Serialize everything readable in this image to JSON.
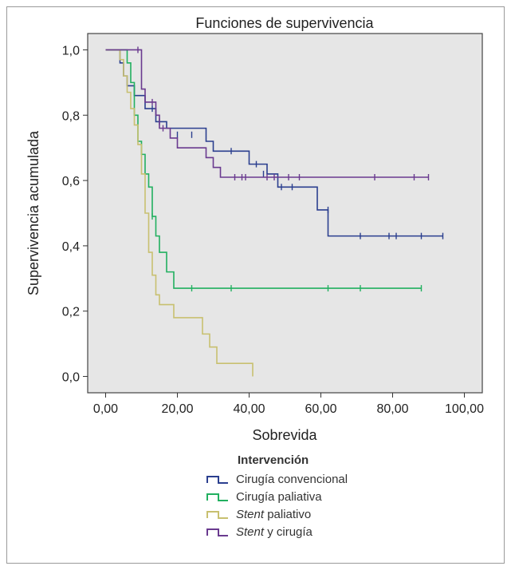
{
  "chart_data": {
    "type": "line",
    "title": "Funciones de supervivencia",
    "xlabel": "Sobrevida",
    "ylabel": "Supervivencia acumulada",
    "xlim": [
      -5,
      105
    ],
    "ylim": [
      -0.05,
      1.05
    ],
    "xticks": [
      "0,00",
      "20,00",
      "40,00",
      "60,00",
      "80,00",
      "100,00"
    ],
    "yticks": [
      "0,0",
      "0,2",
      "0,4",
      "0,6",
      "0,8",
      "1,0"
    ],
    "grid": false,
    "legend_title": "Intervención",
    "legend_position": "bottom",
    "series": [
      {
        "name": "Cirugía convencional",
        "color": "#2b3f8f",
        "steps": [
          [
            0,
            1.0
          ],
          [
            3,
            1.0
          ],
          [
            4,
            0.96
          ],
          [
            5,
            0.92
          ],
          [
            6,
            0.89
          ],
          [
            8,
            0.86
          ],
          [
            11,
            0.82
          ],
          [
            14,
            0.78
          ],
          [
            17,
            0.76
          ],
          [
            28,
            0.72
          ],
          [
            30,
            0.69
          ],
          [
            40,
            0.65
          ],
          [
            45,
            0.62
          ],
          [
            48,
            0.58
          ],
          [
            59,
            0.51
          ],
          [
            62,
            0.43
          ],
          [
            94,
            0.43
          ]
        ],
        "censored": [
          [
            13,
            0.82
          ],
          [
            15,
            0.78
          ],
          [
            20,
            0.74
          ],
          [
            24,
            0.74
          ],
          [
            35,
            0.69
          ],
          [
            42,
            0.65
          ],
          [
            44,
            0.62
          ],
          [
            49,
            0.58
          ],
          [
            52,
            0.58
          ],
          [
            62,
            0.51
          ],
          [
            71,
            0.43
          ],
          [
            79,
            0.43
          ],
          [
            81,
            0.43
          ],
          [
            88,
            0.43
          ],
          [
            94,
            0.43
          ]
        ]
      },
      {
        "name": "Cirugía paliativa",
        "color": "#22b060",
        "steps": [
          [
            0,
            1.0
          ],
          [
            5,
            1.0
          ],
          [
            6,
            0.96
          ],
          [
            7,
            0.9
          ],
          [
            8,
            0.8
          ],
          [
            9,
            0.72
          ],
          [
            10,
            0.68
          ],
          [
            11,
            0.62
          ],
          [
            12,
            0.58
          ],
          [
            13,
            0.49
          ],
          [
            14,
            0.43
          ],
          [
            15,
            0.38
          ],
          [
            17,
            0.32
          ],
          [
            19,
            0.27
          ],
          [
            88,
            0.27
          ]
        ],
        "censored": [
          [
            13,
            0.49
          ],
          [
            24,
            0.27
          ],
          [
            35,
            0.27
          ],
          [
            62,
            0.27
          ],
          [
            71,
            0.27
          ],
          [
            88,
            0.27
          ]
        ]
      },
      {
        "name": "Stent paliativo",
        "color": "#c8c070",
        "steps": [
          [
            0,
            1.0
          ],
          [
            4,
            0.97
          ],
          [
            5,
            0.92
          ],
          [
            6,
            0.87
          ],
          [
            7,
            0.82
          ],
          [
            8,
            0.77
          ],
          [
            9,
            0.71
          ],
          [
            10,
            0.62
          ],
          [
            11,
            0.5
          ],
          [
            12,
            0.38
          ],
          [
            13,
            0.31
          ],
          [
            14,
            0.25
          ],
          [
            15,
            0.22
          ],
          [
            19,
            0.18
          ],
          [
            27,
            0.13
          ],
          [
            29,
            0.09
          ],
          [
            31,
            0.04
          ],
          [
            41,
            0.0
          ]
        ]
      },
      {
        "name": "Stent y cirugía",
        "color": "#6a3a8f",
        "steps": [
          [
            0,
            1.0
          ],
          [
            9,
            1.0
          ],
          [
            10,
            0.88
          ],
          [
            11,
            0.84
          ],
          [
            14,
            0.8
          ],
          [
            15,
            0.76
          ],
          [
            18,
            0.73
          ],
          [
            20,
            0.7
          ],
          [
            28,
            0.67
          ],
          [
            30,
            0.64
          ],
          [
            32,
            0.61
          ],
          [
            90,
            0.61
          ]
        ],
        "censored": [
          [
            9,
            1.0
          ],
          [
            13,
            0.84
          ],
          [
            16,
            0.76
          ],
          [
            36,
            0.61
          ],
          [
            38,
            0.61
          ],
          [
            39,
            0.61
          ],
          [
            45,
            0.61
          ],
          [
            47,
            0.61
          ],
          [
            51,
            0.61
          ],
          [
            54,
            0.61
          ],
          [
            75,
            0.61
          ],
          [
            86,
            0.61
          ],
          [
            90,
            0.61
          ]
        ]
      }
    ]
  },
  "legend_labels": [
    {
      "italic": "",
      "rest": "Cirugía convencional"
    },
    {
      "italic": "",
      "rest": "Cirugía paliativa"
    },
    {
      "italic": "Stent",
      "rest": " paliativo"
    },
    {
      "italic": "Stent",
      "rest": " y cirugía"
    }
  ]
}
